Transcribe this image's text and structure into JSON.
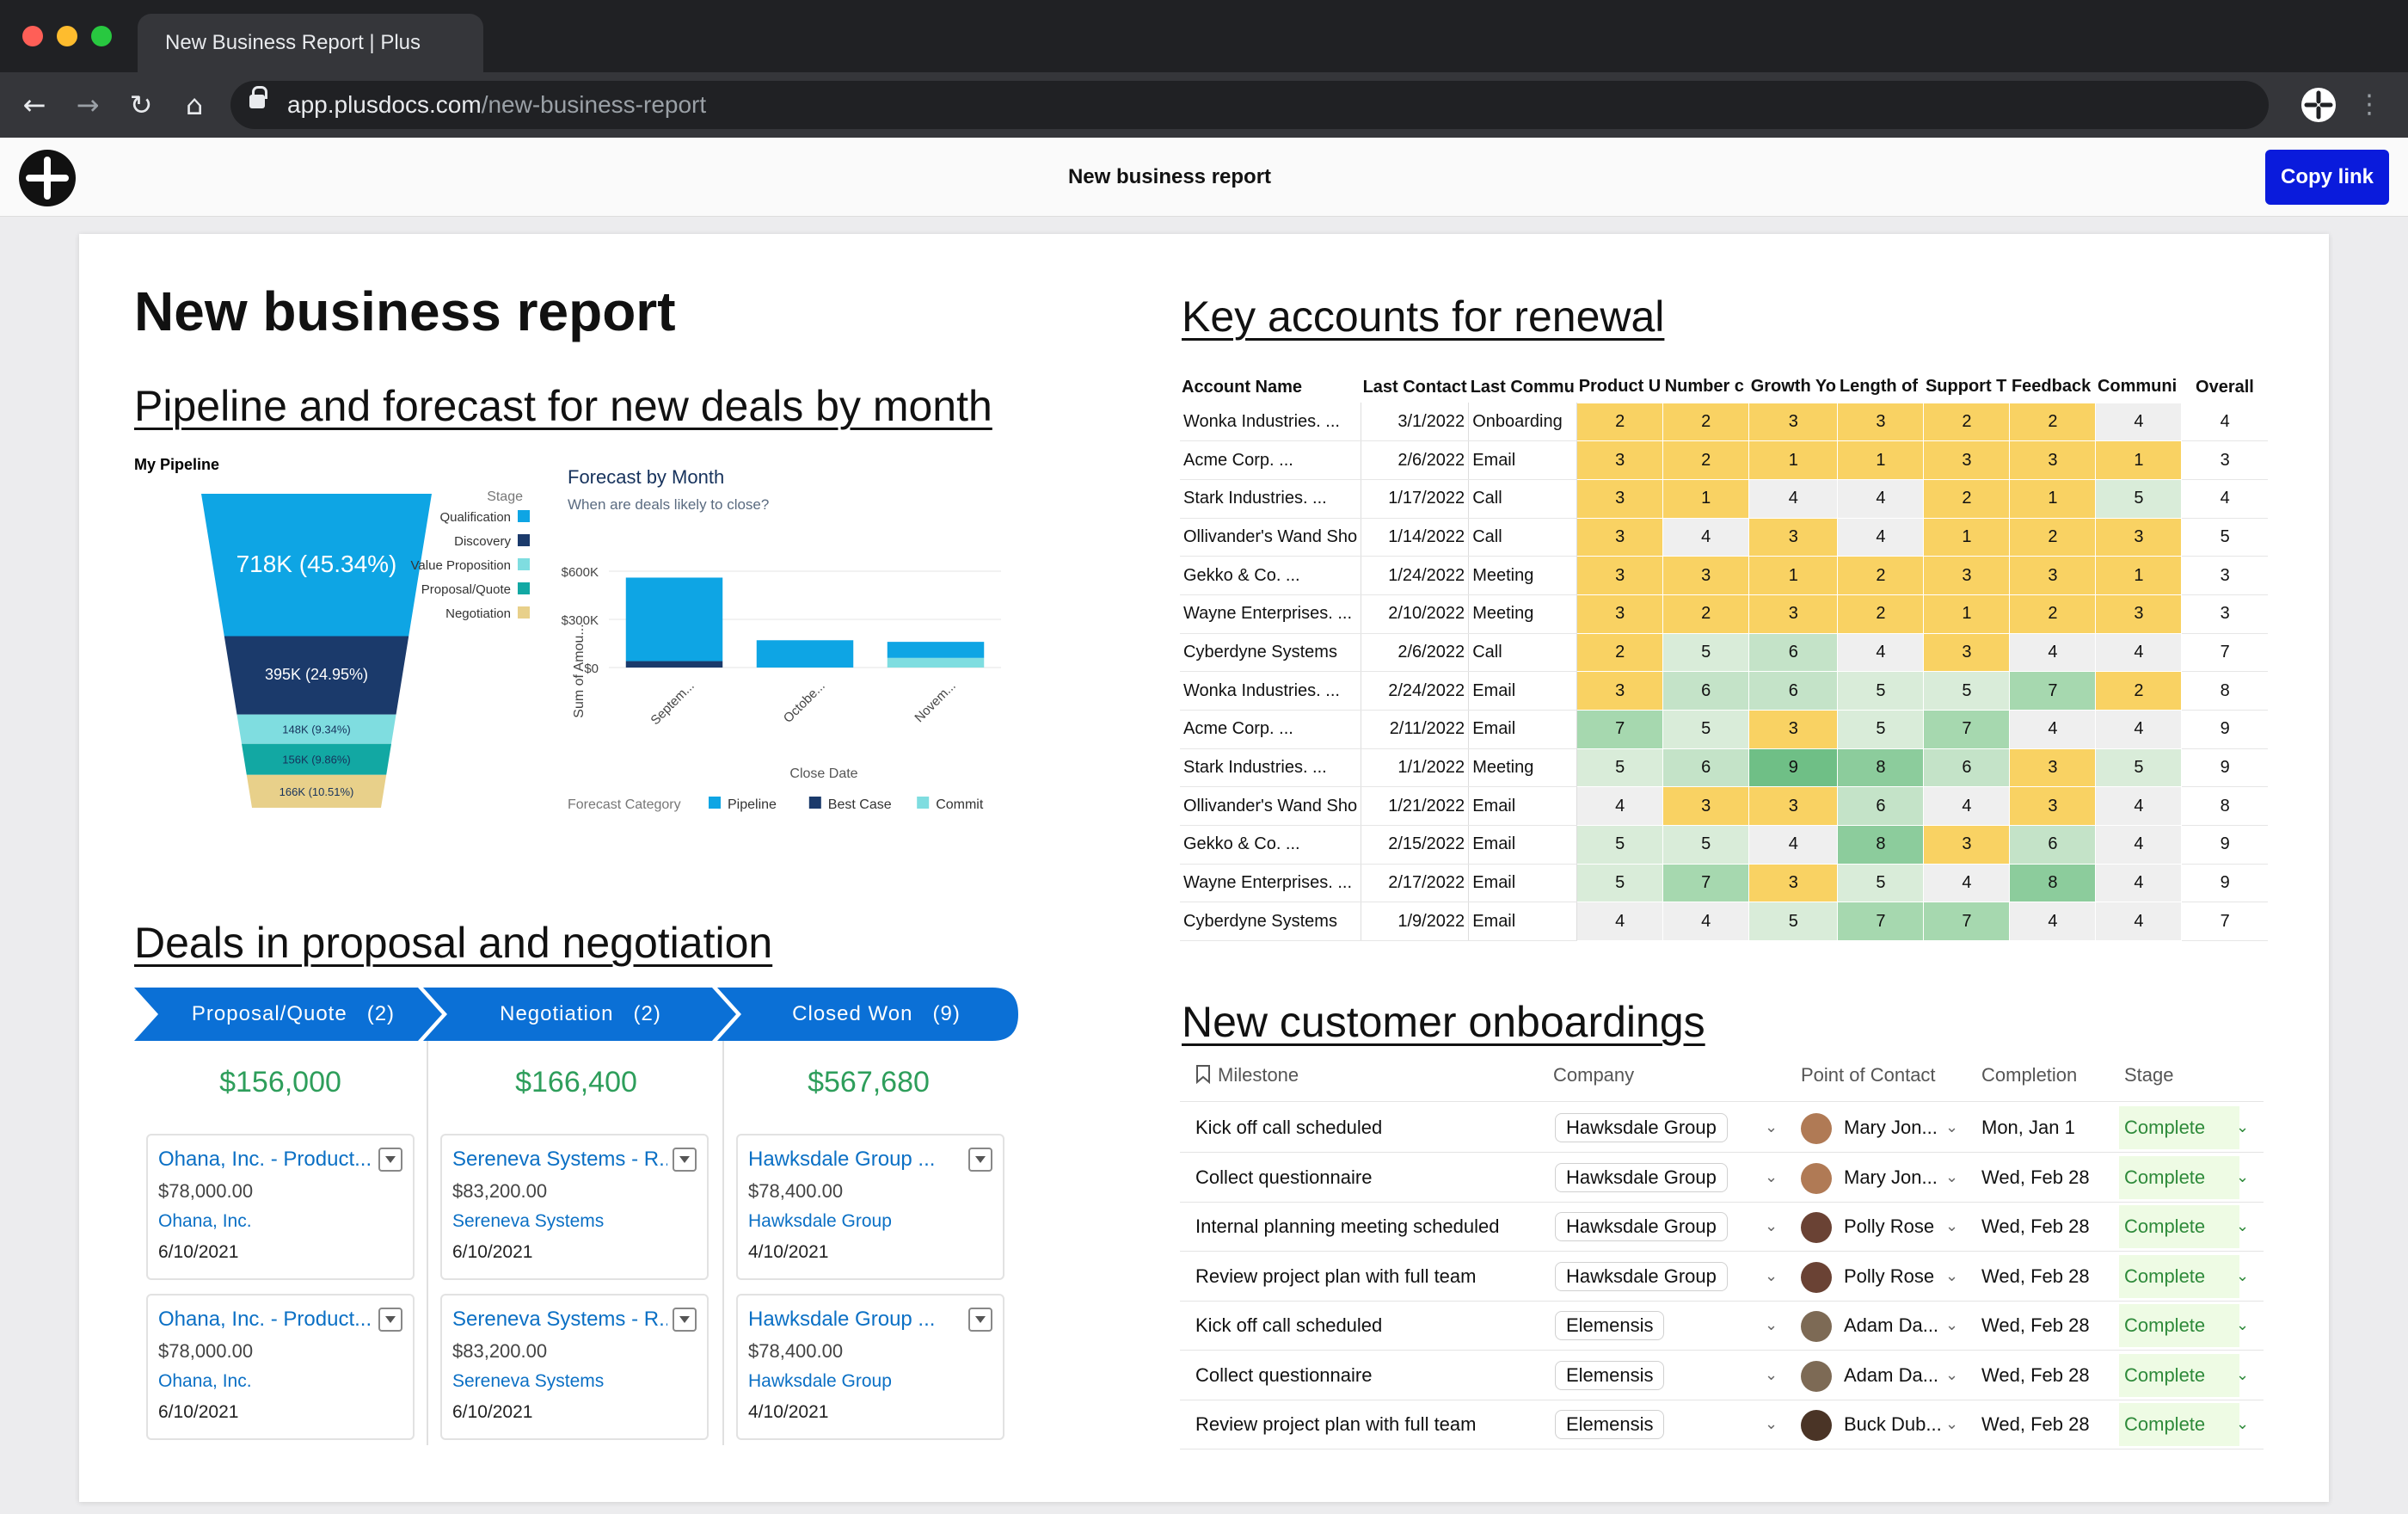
{
  "browser": {
    "tab_title": "New Business Report | Plus",
    "url_host": "app.plusdocs.com",
    "url_path": "/new-business-report",
    "back_glyph": "←",
    "forward_glyph": "→",
    "reload_glyph": "↻",
    "home_glyph": "⌂",
    "menu_glyph": "⋮"
  },
  "app": {
    "title": "New business report",
    "copy_link": "Copy link",
    "brand_color": "#0a1bdc"
  },
  "doc": {
    "title": "New business report",
    "pipeline_heading": "Pipeline and forecast for new deals by month",
    "deals_heading": "Deals in proposal and negotiation",
    "key_accounts_heading": "Key accounts for renewal",
    "onboarding_heading": "New customer onboardings"
  },
  "chart_data": [
    {
      "type": "funnel",
      "title": "My Pipeline",
      "legend_title": "Stage",
      "stages": [
        {
          "name": "Qualification",
          "label": "718K",
          "pct": "(45.34%)",
          "color": "#0ea5e4"
        },
        {
          "name": "Discovery",
          "label": "395K",
          "pct": "(24.95%)",
          "color": "#1b3a6b"
        },
        {
          "name": "Value Proposition",
          "label": "148K",
          "pct": "(9.34%)",
          "color": "#7fdde0"
        },
        {
          "name": "Proposal/Quote",
          "label": "156K",
          "pct": "(9.86%)",
          "color": "#12a8a3"
        },
        {
          "name": "Negotiation",
          "label": "166K",
          "pct": "(10.51%)",
          "color": "#e8d08a"
        }
      ],
      "values": [
        718,
        395,
        148,
        156,
        166
      ]
    },
    {
      "type": "bar",
      "title": "Forecast by Month",
      "subtitle": "When are deals likely to close?",
      "xlabel": "Close Date",
      "ylabel": "Sum of Amou...",
      "categories": [
        "Septem...",
        "Octobe...",
        "Novem..."
      ],
      "yticks": [
        "$0",
        "$300K",
        "$600K"
      ],
      "ylim": [
        0,
        600
      ],
      "legend_title": "Forecast Category",
      "series": [
        {
          "name": "Pipeline",
          "color": "#0ea5e4",
          "values": [
            520,
            170,
            100
          ]
        },
        {
          "name": "Best Case",
          "color": "#1b3a6b",
          "values": [
            40,
            0,
            0
          ]
        },
        {
          "name": "Commit",
          "color": "#7fdde0",
          "values": [
            0,
            0,
            60
          ]
        }
      ]
    }
  ],
  "deals": {
    "stages": [
      {
        "label": "Proposal/Quote",
        "count": "(2)",
        "total": "$156,000",
        "cards": [
          {
            "title": "Ohana, Inc. - Product...",
            "amount": "$78,000.00",
            "company": "Ohana, Inc.",
            "date": "6/10/2021"
          },
          {
            "title": "Ohana, Inc. - Product...",
            "amount": "$78,000.00",
            "company": "Ohana, Inc.",
            "date": "6/10/2021"
          }
        ]
      },
      {
        "label": "Negotiation",
        "count": "(2)",
        "total": "$166,400",
        "cards": [
          {
            "title": "Sereneva Systems - R...",
            "amount": "$83,200.00",
            "company": "Sereneva Systems",
            "date": "6/10/2021"
          },
          {
            "title": "Sereneva Systems - R...",
            "amount": "$83,200.00",
            "company": "Sereneva Systems",
            "date": "6/10/2021"
          }
        ]
      },
      {
        "label": "Closed Won",
        "count": "(9)",
        "total": "$567,680",
        "cards": [
          {
            "title": "Hawksdale Group ...",
            "amount": "$78,400.00",
            "company": "Hawksdale Group",
            "date": "4/10/2021"
          },
          {
            "title": "Hawksdale Group ...",
            "amount": "$78,400.00",
            "company": "Hawksdale Group",
            "date": "4/10/2021"
          }
        ]
      }
    ]
  },
  "key_accounts": {
    "columns": [
      "Account Name",
      "Last Contact",
      "Last Commu",
      "Product U",
      "Number c",
      "Growth Yo",
      "Length of",
      "Support T",
      "Feedback",
      "Communi",
      "Overall"
    ],
    "rows": [
      [
        "Wonka Industries. ...",
        "3/1/2022",
        "Onboarding",
        "2",
        "2",
        "3",
        "3",
        "2",
        "2",
        "4",
        "4"
      ],
      [
        "Acme Corp. ...",
        "2/6/2022",
        "Email",
        "3",
        "2",
        "1",
        "1",
        "3",
        "3",
        "1",
        "3"
      ],
      [
        "Stark Industries. ...",
        "1/17/2022",
        "Call",
        "3",
        "1",
        "4",
        "4",
        "2",
        "1",
        "5",
        "4"
      ],
      [
        "Ollivander's Wand Sho",
        "1/14/2022",
        "Call",
        "3",
        "4",
        "3",
        "4",
        "1",
        "2",
        "3",
        "5"
      ],
      [
        "Gekko & Co. ...",
        "1/24/2022",
        "Meeting",
        "3",
        "3",
        "1",
        "2",
        "3",
        "3",
        "1",
        "3"
      ],
      [
        "Wayne Enterprises. ...",
        "2/10/2022",
        "Meeting",
        "3",
        "2",
        "3",
        "2",
        "1",
        "2",
        "3",
        "3"
      ],
      [
        "Cyberdyne Systems",
        "2/6/2022",
        "Call",
        "2",
        "5",
        "6",
        "4",
        "3",
        "4",
        "4",
        "7"
      ],
      [
        "Wonka Industries. ...",
        "2/24/2022",
        "Email",
        "3",
        "6",
        "6",
        "5",
        "5",
        "7",
        "2",
        "8"
      ],
      [
        "Acme Corp. ...",
        "2/11/2022",
        "Email",
        "7",
        "5",
        "3",
        "5",
        "7",
        "4",
        "4",
        "9"
      ],
      [
        "Stark Industries. ...",
        "1/1/2022",
        "Meeting",
        "5",
        "6",
        "9",
        "8",
        "6",
        "3",
        "5",
        "9"
      ],
      [
        "Ollivander's Wand Sho",
        "1/21/2022",
        "Email",
        "4",
        "3",
        "3",
        "6",
        "4",
        "3",
        "4",
        "8"
      ],
      [
        "Gekko & Co. ...",
        "2/15/2022",
        "Email",
        "5",
        "5",
        "4",
        "8",
        "3",
        "6",
        "4",
        "9"
      ],
      [
        "Wayne Enterprises. ...",
        "2/17/2022",
        "Email",
        "5",
        "7",
        "3",
        "5",
        "4",
        "8",
        "4",
        "9"
      ],
      [
        "Cyberdyne Systems",
        "1/9/2022",
        "Email",
        "4",
        "4",
        "5",
        "7",
        "7",
        "4",
        "4",
        "7"
      ]
    ],
    "heat_colors": {
      "1": "#f9d263",
      "2": "#f9d263",
      "3": "#f9d263",
      "4": "#efefef",
      "5": "#d9ecd9",
      "6": "#c4e3c8",
      "7": "#a6d8af",
      "8": "#8ccc9c",
      "9": "#6fbf86"
    }
  },
  "onboarding": {
    "headers": {
      "milestone": "Milestone",
      "company": "Company",
      "contact": "Point of Contact",
      "completion": "Completion",
      "stage": "Stage"
    },
    "rows": [
      {
        "milestone": "Kick off call scheduled",
        "company": "Hawksdale Group",
        "contact": "Mary Jon...",
        "completion": "Mon, Jan 1",
        "stage": "Complete",
        "avatar": "#b07a55"
      },
      {
        "milestone": "Collect questionnaire",
        "company": "Hawksdale Group",
        "contact": "Mary Jon...",
        "completion": "Wed, Feb 28",
        "stage": "Complete",
        "avatar": "#b07a55"
      },
      {
        "milestone": "Internal planning meeting scheduled",
        "company": "Hawksdale Group",
        "contact": "Polly Rose",
        "completion": "Wed, Feb 28",
        "stage": "Complete",
        "avatar": "#6a4234"
      },
      {
        "milestone": "Review project plan with full team",
        "company": "Hawksdale Group",
        "contact": "Polly Rose",
        "completion": "Wed, Feb 28",
        "stage": "Complete",
        "avatar": "#6a4234"
      },
      {
        "milestone": "Kick off call scheduled",
        "company": "Elemensis",
        "contact": "Adam Da...",
        "completion": "Wed, Feb 28",
        "stage": "Complete",
        "avatar": "#7d6a55"
      },
      {
        "milestone": "Collect questionnaire",
        "company": "Elemensis",
        "contact": "Adam Da...",
        "completion": "Wed, Feb 28",
        "stage": "Complete",
        "avatar": "#7d6a55"
      },
      {
        "milestone": "Review project plan with full team",
        "company": "Elemensis",
        "contact": "Buck Dub...",
        "completion": "Wed, Feb 28",
        "stage": "Complete",
        "avatar": "#4a3426"
      }
    ]
  }
}
